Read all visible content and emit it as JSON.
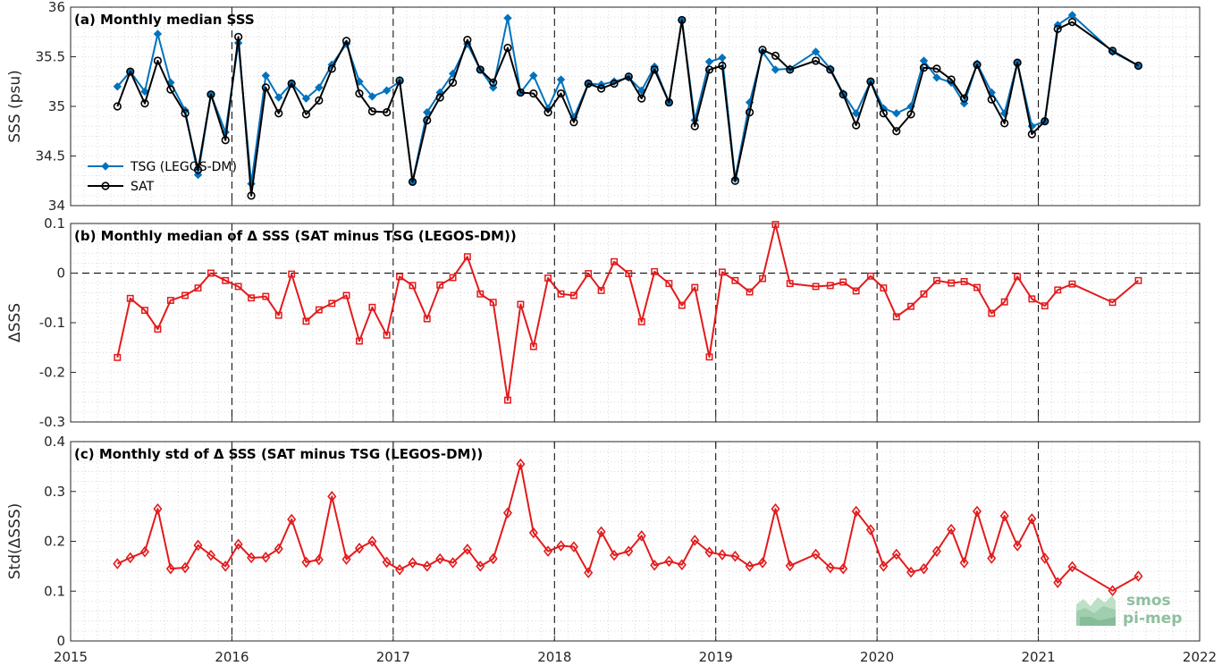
{
  "colors": {
    "tsg": "#0072BD",
    "sat": "#000000",
    "delta": "#E31A1C",
    "grid": "#d0d0d0",
    "logo": "#8fbf9f"
  },
  "logo": {
    "line1": "smos",
    "line2": "pi-mep"
  },
  "x_axis": {
    "range": [
      2015,
      2022
    ],
    "ticks": [
      "2015",
      "2016",
      "2017",
      "2018",
      "2019",
      "2020",
      "2021",
      "2022"
    ],
    "year_separators": [
      2016,
      2017,
      2018,
      2019,
      2020,
      2021
    ]
  },
  "chart_data": [
    {
      "type": "line",
      "title": "(a) Monthly median SSS",
      "ylabel": "SSS (psu)",
      "ylim": [
        34,
        36
      ],
      "yticks": [
        "34",
        "34.5",
        "35",
        "35.5",
        "36"
      ],
      "grid": true,
      "legend_placement": "left",
      "x": [
        2015.29,
        2015.37,
        2015.46,
        2015.54,
        2015.62,
        2015.71,
        2015.79,
        2015.87,
        2015.96,
        2016.04,
        2016.12,
        2016.21,
        2016.29,
        2016.37,
        2016.46,
        2016.54,
        2016.62,
        2016.71,
        2016.79,
        2016.87,
        2016.96,
        2017.04,
        2017.12,
        2017.21,
        2017.29,
        2017.37,
        2017.46,
        2017.54,
        2017.62,
        2017.71,
        2017.79,
        2017.87,
        2017.96,
        2018.04,
        2018.12,
        2018.21,
        2018.29,
        2018.37,
        2018.46,
        2018.54,
        2018.62,
        2018.71,
        2018.79,
        2018.87,
        2018.96,
        2019.04,
        2019.12,
        2019.21,
        2019.29,
        2019.37,
        2019.46,
        2019.62,
        2019.71,
        2019.79,
        2019.87,
        2019.96,
        2020.04,
        2020.12,
        2020.21,
        2020.29,
        2020.37,
        2020.46,
        2020.54,
        2020.62,
        2020.71,
        2020.79,
        2020.87,
        2020.96,
        2021.04,
        2021.12,
        2021.21,
        2021.46,
        2021.62
      ],
      "series": [
        {
          "name": "TSG (LEGOS-DM)",
          "marker": "diamond-filled",
          "values": [
            35.2,
            35.35,
            35.15,
            35.73,
            35.24,
            34.96,
            34.31,
            35.12,
            34.74,
            35.64,
            34.22,
            35.31,
            35.09,
            35.23,
            35.08,
            35.19,
            35.42,
            35.63,
            35.25,
            35.1,
            35.16,
            35.25,
            34.24,
            34.94,
            35.14,
            35.33,
            35.63,
            35.37,
            35.19,
            35.89,
            35.14,
            35.31,
            34.98,
            35.27,
            34.89,
            35.23,
            35.22,
            35.25,
            35.29,
            35.16,
            35.4,
            35.04,
            35.87,
            34.86,
            35.45,
            35.49,
            34.27,
            35.04,
            35.55,
            35.37,
            35.38,
            35.55,
            35.38,
            35.13,
            34.93,
            35.25,
            34.98,
            34.93,
            35.0,
            35.46,
            35.29,
            35.24,
            35.03,
            35.43,
            35.14,
            34.93,
            35.44,
            34.8,
            34.85,
            35.82,
            35.92,
            35.55,
            35.41
          ]
        },
        {
          "name": "SAT",
          "marker": "circle-open",
          "values": [
            35.0,
            35.35,
            35.03,
            35.46,
            35.17,
            34.93,
            34.36,
            35.12,
            34.66,
            35.7,
            34.1,
            35.19,
            34.93,
            35.23,
            34.92,
            35.06,
            35.38,
            35.66,
            35.13,
            34.95,
            34.94,
            35.26,
            34.24,
            34.86,
            35.09,
            35.24,
            35.67,
            35.37,
            35.24,
            35.59,
            35.14,
            35.13,
            34.94,
            35.13,
            34.84,
            35.23,
            35.18,
            35.23,
            35.3,
            35.08,
            35.37,
            35.04,
            35.87,
            34.8,
            35.37,
            35.41,
            34.25,
            34.94,
            35.57,
            35.51,
            35.37,
            35.46,
            35.37,
            35.12,
            34.81,
            35.25,
            34.93,
            34.75,
            34.92,
            35.39,
            35.38,
            35.27,
            35.08,
            35.42,
            35.07,
            34.83,
            35.44,
            34.72,
            34.85,
            35.78,
            35.85,
            35.56,
            35.41
          ]
        }
      ]
    },
    {
      "type": "line",
      "title": "(b) Monthly median of Δ SSS (SAT minus TSG (LEGOS-DM))",
      "ylabel": "ΔSSS",
      "ylim": [
        -0.3,
        0.1
      ],
      "yticks": [
        "-0.3",
        "-0.2",
        "-0.1",
        "0",
        "0.1"
      ],
      "zero_line": true,
      "grid": true,
      "x": [
        2015.29,
        2015.37,
        2015.46,
        2015.54,
        2015.62,
        2015.71,
        2015.79,
        2015.87,
        2015.96,
        2016.04,
        2016.12,
        2016.21,
        2016.29,
        2016.37,
        2016.46,
        2016.54,
        2016.62,
        2016.71,
        2016.79,
        2016.87,
        2016.96,
        2017.04,
        2017.12,
        2017.21,
        2017.29,
        2017.37,
        2017.46,
        2017.54,
        2017.62,
        2017.71,
        2017.79,
        2017.87,
        2017.96,
        2018.04,
        2018.12,
        2018.21,
        2018.29,
        2018.37,
        2018.46,
        2018.54,
        2018.62,
        2018.71,
        2018.79,
        2018.87,
        2018.96,
        2019.04,
        2019.12,
        2019.21,
        2019.29,
        2019.37,
        2019.46,
        2019.62,
        2019.71,
        2019.79,
        2019.87,
        2019.96,
        2020.04,
        2020.12,
        2020.21,
        2020.29,
        2020.37,
        2020.46,
        2020.54,
        2020.62,
        2020.71,
        2020.79,
        2020.87,
        2020.96,
        2021.04,
        2021.12,
        2021.21,
        2021.46,
        2021.62
      ],
      "series": [
        {
          "name": "",
          "marker": "square-open",
          "values": [
            -0.17,
            -0.051,
            -0.075,
            -0.113,
            -0.055,
            -0.045,
            -0.03,
            0.0,
            -0.015,
            -0.027,
            -0.05,
            -0.047,
            -0.085,
            -0.002,
            -0.097,
            -0.074,
            -0.061,
            -0.045,
            -0.137,
            -0.069,
            -0.125,
            -0.007,
            -0.025,
            -0.092,
            -0.024,
            -0.009,
            0.033,
            -0.042,
            -0.059,
            -0.256,
            -0.063,
            -0.148,
            -0.01,
            -0.042,
            -0.045,
            -0.001,
            -0.035,
            0.023,
            -0.001,
            -0.098,
            0.003,
            -0.021,
            -0.065,
            -0.029,
            -0.169,
            0.002,
            -0.015,
            -0.038,
            -0.011,
            0.098,
            -0.021,
            -0.027,
            -0.025,
            -0.018,
            -0.036,
            -0.006,
            -0.03,
            -0.088,
            -0.067,
            -0.042,
            -0.015,
            -0.02,
            -0.017,
            -0.029,
            -0.081,
            -0.058,
            -0.007,
            -0.052,
            -0.066,
            -0.034,
            -0.022,
            -0.059,
            -0.015
          ]
        }
      ]
    },
    {
      "type": "line",
      "title": "(c) Monthly std of Δ SSS (SAT minus TSG (LEGOS-DM))",
      "ylabel": "Std(ΔSSS)",
      "ylim": [
        0,
        0.4
      ],
      "yticks": [
        "0",
        "0.1",
        "0.2",
        "0.3",
        "0.4"
      ],
      "grid": true,
      "x": [
        2015.29,
        2015.37,
        2015.46,
        2015.54,
        2015.62,
        2015.71,
        2015.79,
        2015.87,
        2015.96,
        2016.04,
        2016.12,
        2016.21,
        2016.29,
        2016.37,
        2016.46,
        2016.54,
        2016.62,
        2016.71,
        2016.79,
        2016.87,
        2016.96,
        2017.04,
        2017.12,
        2017.21,
        2017.29,
        2017.37,
        2017.46,
        2017.54,
        2017.62,
        2017.71,
        2017.79,
        2017.87,
        2017.96,
        2018.04,
        2018.12,
        2018.21,
        2018.29,
        2018.37,
        2018.46,
        2018.54,
        2018.62,
        2018.71,
        2018.79,
        2018.87,
        2018.96,
        2019.04,
        2019.12,
        2019.21,
        2019.29,
        2019.37,
        2019.46,
        2019.62,
        2019.71,
        2019.79,
        2019.87,
        2019.96,
        2020.04,
        2020.12,
        2020.21,
        2020.29,
        2020.37,
        2020.46,
        2020.54,
        2020.62,
        2020.71,
        2020.79,
        2020.87,
        2020.96,
        2021.04,
        2021.12,
        2021.21,
        2021.46,
        2021.62
      ],
      "series": [
        {
          "name": "",
          "marker": "diamond-open",
          "values": [
            0.155,
            0.167,
            0.179,
            0.265,
            0.145,
            0.147,
            0.192,
            0.172,
            0.15,
            0.194,
            0.167,
            0.168,
            0.185,
            0.244,
            0.158,
            0.163,
            0.29,
            0.164,
            0.186,
            0.2,
            0.158,
            0.143,
            0.157,
            0.15,
            0.165,
            0.157,
            0.184,
            0.15,
            0.165,
            0.257,
            0.355,
            0.217,
            0.18,
            0.191,
            0.189,
            0.137,
            0.219,
            0.172,
            0.18,
            0.211,
            0.152,
            0.16,
            0.153,
            0.202,
            0.178,
            0.173,
            0.17,
            0.15,
            0.157,
            0.265,
            0.151,
            0.174,
            0.147,
            0.145,
            0.26,
            0.223,
            0.15,
            0.174,
            0.138,
            0.145,
            0.18,
            0.224,
            0.157,
            0.26,
            0.166,
            0.251,
            0.191,
            0.245,
            0.166,
            0.117,
            0.149,
            0.101,
            0.13
          ]
        }
      ]
    }
  ]
}
